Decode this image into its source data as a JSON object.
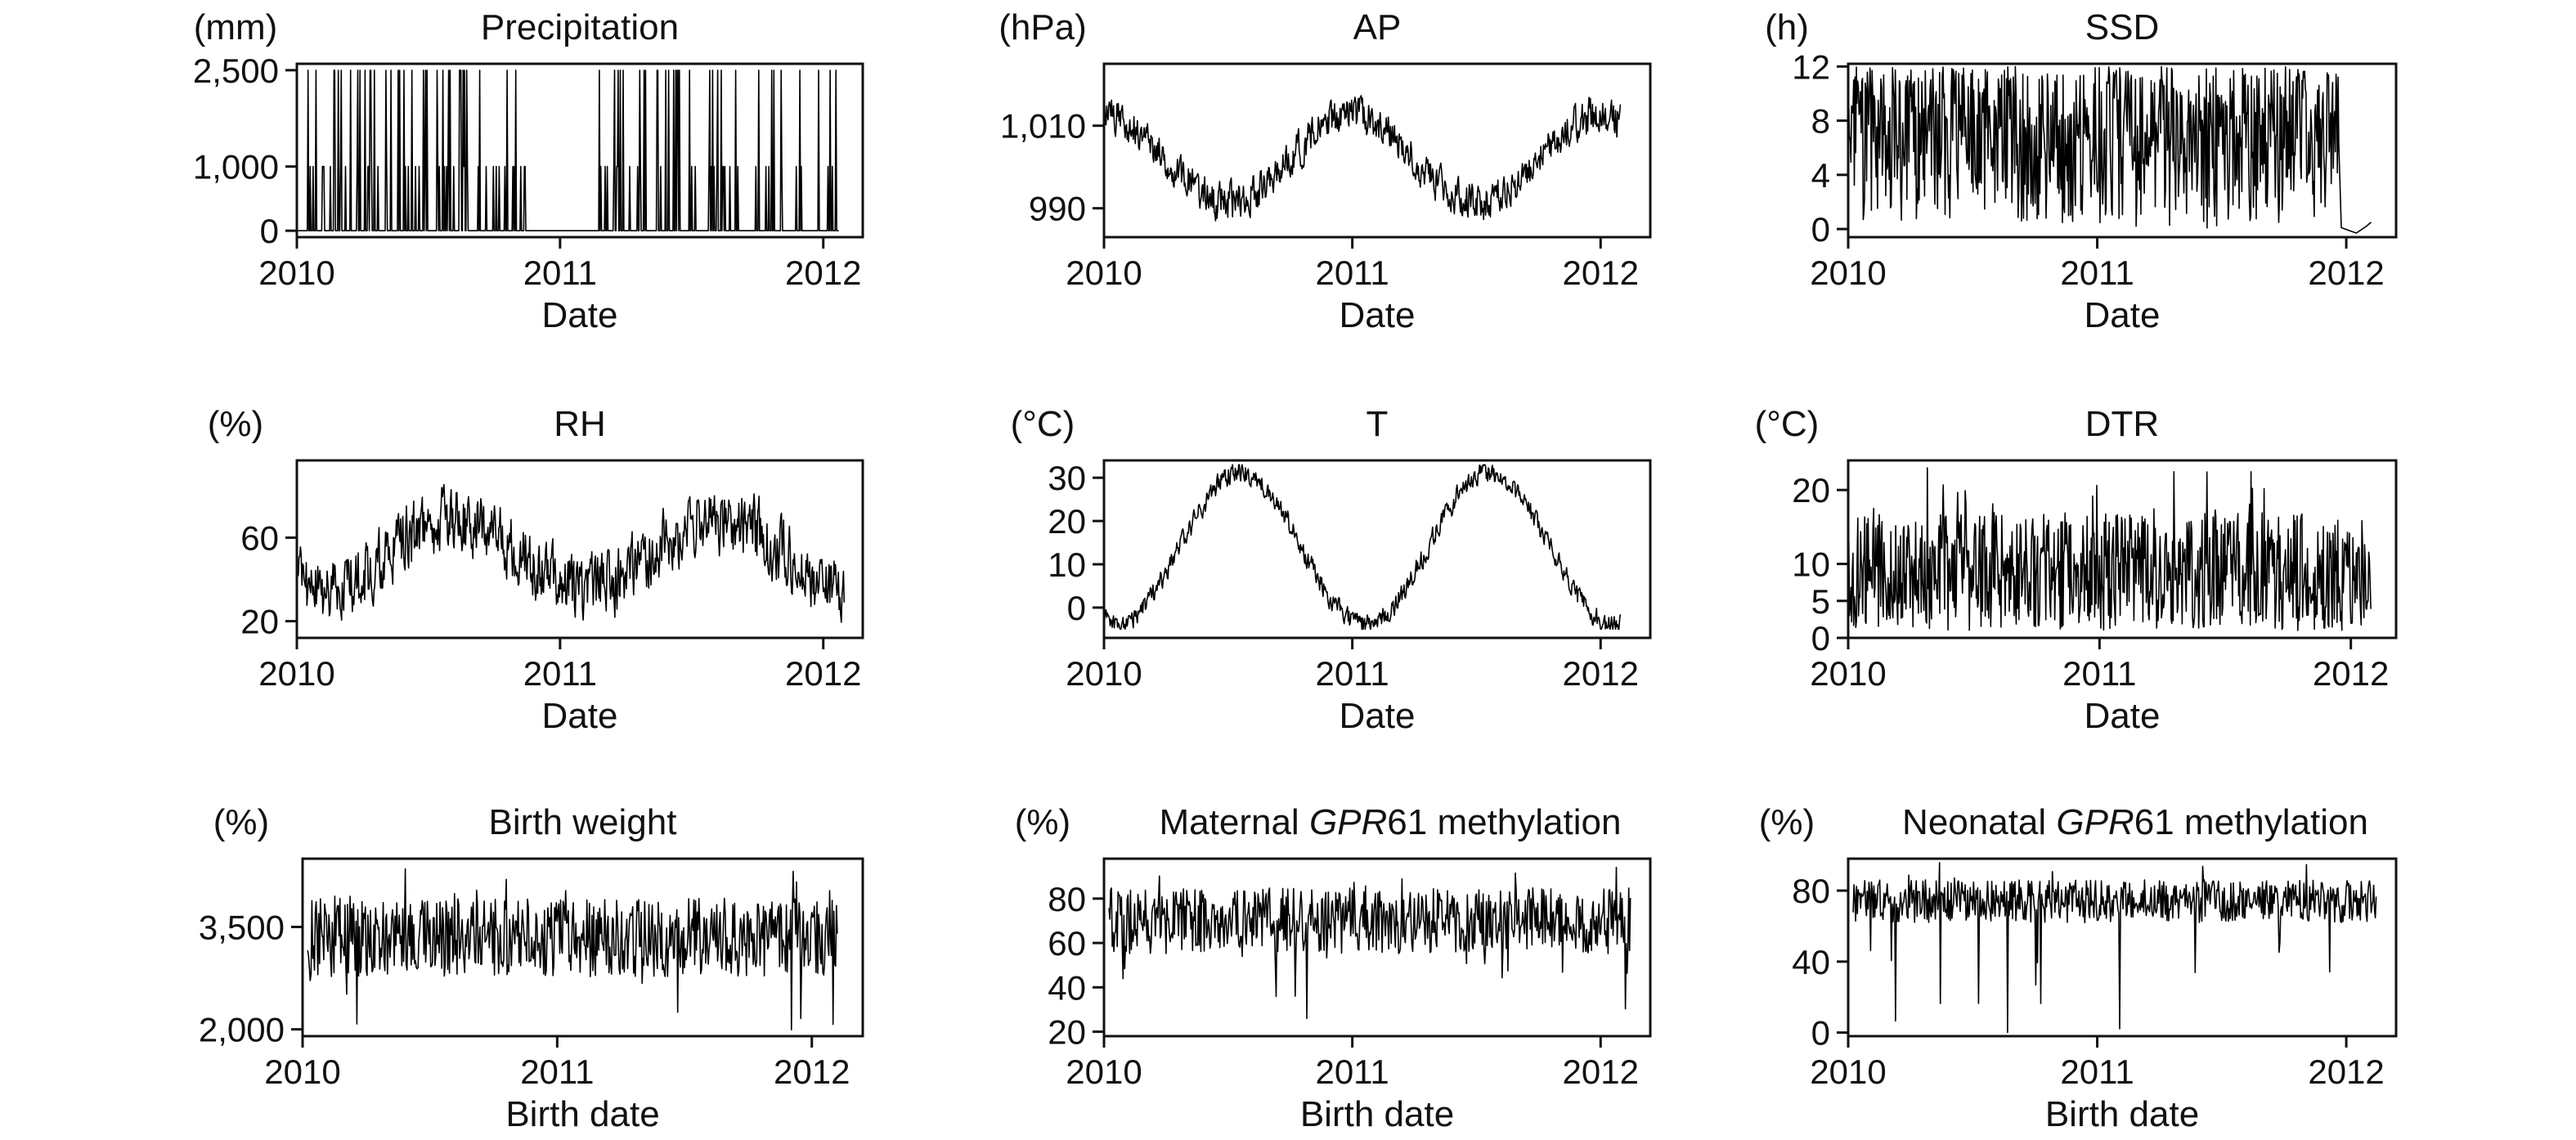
{
  "figure": {
    "line_color": "#000000",
    "background": "#ffffff"
  },
  "chart_data": [
    {
      "type": "line",
      "title": "Precipitation",
      "unit": "(mm)",
      "xlabel": "Date",
      "ylabel": "(mm)",
      "x_ticks": [
        "2010",
        "2011",
        "2012"
      ],
      "x_tick_values": [
        2010,
        2011,
        2012
      ],
      "y_ticks": [
        "0",
        "1,000",
        "2,500"
      ],
      "y_tick_values": [
        0,
        1000,
        2500
      ],
      "xlim": [
        2010,
        2012.15
      ],
      "ylim": [
        -100,
        2600
      ],
      "y_scale": "nonlinear (0, 1,000, 2,500 ticks roughly evenly spaced)",
      "grid": false,
      "pattern": "spikes",
      "spike_levels": [
        1000,
        2500
      ],
      "active_periods": [
        [
          2010.03,
          2010.88
        ],
        [
          2011.13,
          2011.92
        ],
        [
          2011.98,
          2012.05
        ]
      ],
      "dry_periods": [
        [
          2009.98,
          2010.03
        ],
        [
          2010.88,
          2011.13
        ],
        [
          2011.92,
          2011.98
        ]
      ]
    },
    {
      "type": "line",
      "title": "AP",
      "unit": "(hPa)",
      "xlabel": "Date",
      "ylabel": "(hPa)",
      "x_ticks": [
        "2010",
        "2011",
        "2012"
      ],
      "x_tick_values": [
        2010,
        2011,
        2012
      ],
      "y_ticks": [
        "990",
        "1,010"
      ],
      "y_tick_values": [
        990,
        1010
      ],
      "xlim": [
        2010,
        2012.2
      ],
      "ylim": [
        983,
        1025
      ],
      "grid": false,
      "seasonal": {
        "mean": 1002,
        "amplitude": 10.5,
        "peak": 2010.0,
        "noise": 4
      },
      "range": [
        985,
        1022
      ]
    },
    {
      "type": "line",
      "title": "SSD",
      "unit": "(h)",
      "xlabel": "Date",
      "ylabel": "(h)",
      "x_ticks": [
        "2010",
        "2011",
        "2012"
      ],
      "x_tick_values": [
        2010,
        2011,
        2012
      ],
      "y_ticks": [
        "0",
        "4",
        "8",
        "12"
      ],
      "y_tick_values": [
        0,
        4,
        8,
        12
      ],
      "xlim": [
        2010,
        2012.2
      ],
      "ylim": [
        -0.6,
        12.2
      ],
      "grid": false,
      "pattern": "daily",
      "range": [
        0,
        12
      ],
      "data_end": 2011.97,
      "tail": [
        [
          2011.98,
          0.1
        ],
        [
          2012.04,
          -0.3
        ],
        [
          2012.08,
          0.2
        ],
        [
          2012.1,
          0.5
        ]
      ]
    },
    {
      "type": "line",
      "title": "RH",
      "unit": "(%)",
      "xlabel": "Date",
      "ylabel": "(%)",
      "x_ticks": [
        "2010",
        "2011",
        "2012"
      ],
      "x_tick_values": [
        2010,
        2011,
        2012
      ],
      "y_ticks": [
        "20",
        "60"
      ],
      "y_tick_values": [
        20,
        60
      ],
      "xlim": [
        2010,
        2012.15
      ],
      "ylim": [
        12,
        97
      ],
      "grid": false,
      "seasonal": {
        "mean": 52,
        "amplitude": 17,
        "peak": 2010.6,
        "noise": 14
      },
      "range": [
        14,
        92
      ]
    },
    {
      "type": "line",
      "title": "T",
      "unit": "(°C)",
      "xlabel": "Date",
      "ylabel": "(°C)",
      "x_ticks": [
        "2010",
        "2011",
        "2012"
      ],
      "x_tick_values": [
        2010,
        2011,
        2012
      ],
      "y_ticks": [
        "0",
        "10",
        "20",
        "30"
      ],
      "y_tick_values": [
        0,
        10,
        20,
        30
      ],
      "xlim": [
        2010,
        2012.2
      ],
      "ylim": [
        -7,
        34
      ],
      "grid": false,
      "seasonal": {
        "mean": 13.5,
        "amplitude": 17.5,
        "peak": 2010.55,
        "noise": 2.2
      },
      "range": [
        -5,
        33
      ]
    },
    {
      "type": "line",
      "title": "DTR",
      "unit": "(°C)",
      "xlabel": "Date",
      "ylabel": "(°C)",
      "x_ticks": [
        "2010",
        "2011",
        "2012"
      ],
      "x_tick_values": [
        2010,
        2011,
        2012
      ],
      "y_ticks": [
        "0",
        "5",
        "10",
        "20"
      ],
      "y_tick_values": [
        0,
        5,
        10,
        20
      ],
      "xlim": [
        2010,
        2012.18
      ],
      "ylim": [
        0,
        24
      ],
      "grid": false,
      "pattern": "daily",
      "range": [
        1,
        23
      ],
      "typical": 9
    },
    {
      "type": "line",
      "title": "Birth weight",
      "unit": "(%)",
      "xlabel": "Birth date",
      "ylabel": "(%)",
      "x_ticks": [
        "2010",
        "2011",
        "2012"
      ],
      "x_tick_values": [
        2010,
        2011,
        2012
      ],
      "y_ticks": [
        "2,000",
        "3,500"
      ],
      "y_tick_values": [
        2000,
        3500
      ],
      "xlim": [
        2010,
        2012.2
      ],
      "ylim": [
        1900,
        4500
      ],
      "grid": false,
      "pattern": "noisy",
      "typical": 3350,
      "range": [
        1950,
        4400
      ],
      "data_start": 2010.02,
      "data_end": 2012.1
    },
    {
      "type": "line",
      "title_parts": [
        {
          "text": "Maternal ",
          "italic": false
        },
        {
          "text": "GPR",
          "italic": true
        },
        {
          "text": "61 methylation",
          "italic": false
        }
      ],
      "unit": "(%)",
      "xlabel": "Birth date",
      "ylabel": "(%)",
      "x_ticks": [
        "2010",
        "2011",
        "2012"
      ],
      "x_tick_values": [
        2010,
        2011,
        2012
      ],
      "y_ticks": [
        "20",
        "40",
        "60",
        "80"
      ],
      "y_tick_values": [
        20,
        40,
        60,
        80
      ],
      "xlim": [
        2010,
        2012.2
      ],
      "ylim": [
        18,
        98
      ],
      "grid": false,
      "pattern": "noisy",
      "typical": 70,
      "range": [
        20,
        97
      ],
      "data_start": 2010.02,
      "data_end": 2012.12
    },
    {
      "type": "line",
      "title_parts": [
        {
          "text": "Neonatal ",
          "italic": false
        },
        {
          "text": "GPR",
          "italic": true
        },
        {
          "text": "61 methylation",
          "italic": false
        }
      ],
      "unit": "(%)",
      "xlabel": "Birth date",
      "ylabel": "(%)",
      "x_ticks": [
        "2010",
        "2011",
        "2012"
      ],
      "x_tick_values": [
        2010,
        2011,
        2012
      ],
      "y_ticks": [
        "0",
        "40",
        "80"
      ],
      "y_tick_values": [
        0,
        40,
        80
      ],
      "xlim": [
        2010,
        2012.2
      ],
      "ylim": [
        -2,
        98
      ],
      "grid": false,
      "pattern": "noisy",
      "typical": 74,
      "range": [
        0,
        96
      ],
      "data_start": 2010.02,
      "data_end": 2012.12
    }
  ]
}
